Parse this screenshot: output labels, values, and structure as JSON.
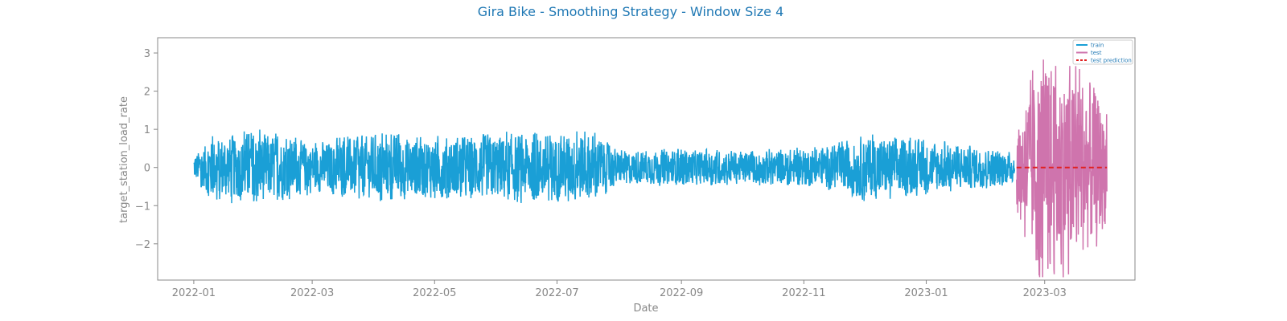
{
  "chart_data": {
    "type": "line",
    "title": "Gira Bike - Smoothing Strategy - Window Size 4",
    "xlabel": "Date",
    "ylabel": "target_station_load_rate",
    "xlim": [
      "2021-12-14",
      "2023-04-15"
    ],
    "ylim": [
      -2.95,
      3.4
    ],
    "x_ticks": [
      "2022-01",
      "2022-03",
      "2022-05",
      "2022-07",
      "2022-09",
      "2022-11",
      "2023-01",
      "2023-03"
    ],
    "y_ticks": [
      -2,
      -1,
      0,
      1,
      2,
      3
    ],
    "legend_position": "top-right",
    "series": [
      {
        "name": "train",
        "color": "#1a9fd6",
        "style": "solid",
        "x_start": "2022-01-01",
        "x_end": "2023-02-14",
        "amplitude_profile": [
          {
            "date": "2022-01-01",
            "amp": 0.35
          },
          {
            "date": "2022-01-10",
            "amp": 0.9
          },
          {
            "date": "2022-02-05",
            "amp": 1.0
          },
          {
            "date": "2022-03-01",
            "amp": 0.7
          },
          {
            "date": "2022-04-01",
            "amp": 0.9
          },
          {
            "date": "2022-05-01",
            "amp": 0.85
          },
          {
            "date": "2022-06-01",
            "amp": 0.95
          },
          {
            "date": "2022-07-20",
            "amp": 0.95
          },
          {
            "date": "2022-08-01",
            "amp": 0.45
          },
          {
            "date": "2022-09-01",
            "amp": 0.5
          },
          {
            "date": "2022-10-01",
            "amp": 0.45
          },
          {
            "date": "2022-11-10",
            "amp": 0.55
          },
          {
            "date": "2022-12-01",
            "amp": 0.9
          },
          {
            "date": "2023-01-01",
            "amp": 0.75
          },
          {
            "date": "2023-02-14",
            "amp": 0.45
          }
        ]
      },
      {
        "name": "test",
        "color": "#cf74ad",
        "style": "solid",
        "x_start": "2023-02-15",
        "x_end": "2023-04-01",
        "amplitude_profile": [
          {
            "date": "2023-02-15",
            "amp": 1.1
          },
          {
            "date": "2023-02-25",
            "amp": 3.1
          },
          {
            "date": "2023-03-10",
            "amp": 3.0
          },
          {
            "date": "2023-03-22",
            "amp": 2.6
          },
          {
            "date": "2023-04-01",
            "amp": 1.6
          }
        ]
      },
      {
        "name": "test prediction",
        "color": "#e02020",
        "style": "dashed",
        "x": [
          "2023-02-15",
          "2023-04-01"
        ],
        "y": [
          0,
          0
        ]
      }
    ]
  }
}
